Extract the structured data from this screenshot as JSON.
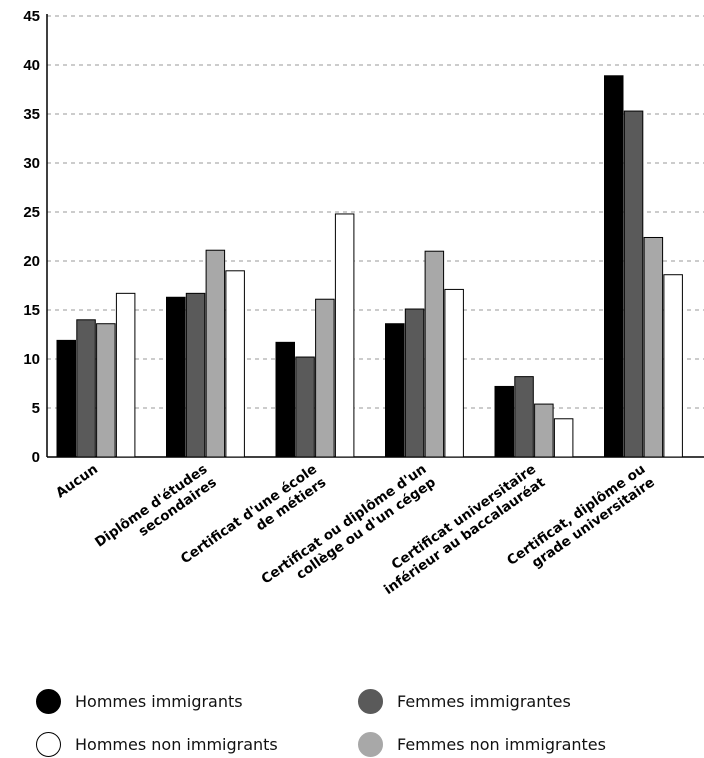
{
  "chart_data": {
    "type": "bar",
    "categories": [
      [
        "Aucun"
      ],
      [
        "Diplôme d'études",
        "secondaires"
      ],
      [
        "Certificat d'une école",
        "de métiers"
      ],
      [
        "Certificat ou diplôme d'un",
        "collège ou d'un cégep"
      ],
      [
        "Certificat universitaire",
        "inférieur au baccalauréat"
      ],
      [
        "Certificat, diplôme ou",
        "grade universitaire"
      ]
    ],
    "series": [
      {
        "name": "Hommes immigrants",
        "color": "#000000",
        "values": [
          11.9,
          16.3,
          11.7,
          13.6,
          7.2,
          38.9
        ]
      },
      {
        "name": "Femmes immigrantes",
        "color": "#5a5a5a",
        "values": [
          14.0,
          16.7,
          10.2,
          15.1,
          8.2,
          35.3
        ]
      },
      {
        "name": "Femmes non immigrantes",
        "color": "#a8a8a8",
        "values": [
          13.6,
          21.1,
          16.1,
          21.0,
          5.4,
          22.4
        ]
      },
      {
        "name": "Hommes non immigrants",
        "color": "#ffffff",
        "values": [
          16.7,
          19.0,
          24.8,
          17.1,
          3.9,
          18.6
        ]
      }
    ],
    "ylim": [
      0,
      45
    ],
    "yticks": [
      0,
      5,
      10,
      15,
      20,
      25,
      30,
      35,
      40,
      45
    ],
    "grid": true,
    "legend_position": "bottom"
  },
  "legend": {
    "items": [
      {
        "label": "Hommes immigrants",
        "color": "#000000"
      },
      {
        "label": "Femmes immigrantes",
        "color": "#5a5a5a"
      },
      {
        "label": "Hommes non immigrants",
        "color": "#ffffff"
      },
      {
        "label": "Femmes non immigrantes",
        "color": "#a8a8a8"
      }
    ]
  }
}
